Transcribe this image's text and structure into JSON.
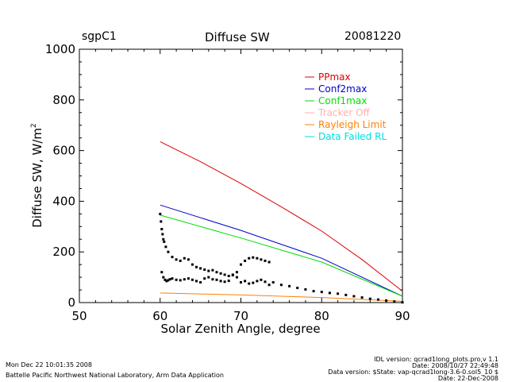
{
  "header": {
    "site": "sgpC1",
    "title": "Diffuse SW",
    "date": "20081220"
  },
  "footer": {
    "timestamp": "Mon Dec 22 10:01:35 2008",
    "org": "Battelle Pacific Northwest National Laboratory, Arm Data Application",
    "idl_version": "IDL version: qcrad1long_plots.pro,v 1.1",
    "idl_date": "Date: 2008/10/27 22:49:48",
    "data_version": "Data version: $State: vap-qcrad1long-3.6-0.sol5_10 $",
    "data_date": "Date: 22-Dec-2008"
  },
  "chart_data": {
    "type": "scatter",
    "title": "Diffuse SW",
    "xlabel": "Solar Zenith Angle, degree",
    "ylabel": "Diffuse SW, W/m",
    "ylabel_sup": "2",
    "xlim": [
      50,
      90
    ],
    "ylim": [
      0,
      1000
    ],
    "x_ticks": [
      50,
      60,
      70,
      80,
      90
    ],
    "y_ticks": [
      0,
      200,
      400,
      600,
      800,
      1000
    ],
    "legend_position": "top-right",
    "series": [
      {
        "name": "PPmax",
        "color": "#dd0000",
        "kind": "line",
        "x": [
          60,
          65,
          70,
          75,
          80,
          85,
          90
        ],
        "y": [
          635,
          556,
          470,
          378,
          282,
          170,
          45
        ]
      },
      {
        "name": "Conf2max",
        "color": "#0000cc",
        "kind": "line",
        "x": [
          60,
          70,
          80,
          90
        ],
        "y": [
          385,
          285,
          175,
          25
        ]
      },
      {
        "name": "Conf1max",
        "color": "#00dd00",
        "kind": "line",
        "x": [
          60,
          70,
          80,
          90
        ],
        "y": [
          345,
          255,
          160,
          25
        ]
      },
      {
        "name": "Tracker Off",
        "color": "#ffb0b0",
        "kind": "none",
        "x": [],
        "y": []
      },
      {
        "name": "Rayleigh Limit",
        "color": "#ff8000",
        "kind": "line",
        "x": [
          60,
          70,
          80,
          90
        ],
        "y": [
          38,
          30,
          20,
          5
        ]
      },
      {
        "name": "Data Failed RL",
        "color": "#00dddd",
        "kind": "none",
        "x": [],
        "y": []
      },
      {
        "name": "",
        "color": "#000000",
        "kind": "points",
        "x": [
          60.0,
          60.1,
          60.2,
          60.3,
          60.4,
          60.5,
          60.7,
          61.0,
          61.5,
          62.0,
          62.5,
          63.0,
          63.5,
          64.0,
          64.5,
          65.0,
          65.5,
          66.0,
          66.5,
          67.0,
          67.5,
          68.0,
          68.5,
          69.0,
          69.5,
          70.0,
          70.5,
          71.0,
          71.5,
          72.0,
          72.5,
          73.0,
          73.5,
          74.0,
          75.0,
          76.0,
          77.0,
          78.0,
          79.0,
          80.0,
          81.0,
          82.0,
          83.0,
          84.0,
          85.0,
          86.0,
          87.0,
          88.0,
          89.0,
          90.0,
          60.2,
          60.4,
          60.6,
          60.8,
          61.0,
          61.2,
          61.5,
          62.0,
          62.5,
          63.0,
          63.5,
          64.0,
          64.5,
          65.0,
          65.5,
          66.0,
          66.5,
          67.0,
          67.5,
          68.0,
          68.5,
          69.0,
          69.5,
          70.0,
          70.5,
          71.0,
          71.5,
          72.0,
          72.5,
          73.0,
          73.5
        ],
        "y": [
          350,
          320,
          290,
          270,
          250,
          240,
          220,
          200,
          180,
          170,
          165,
          175,
          170,
          150,
          140,
          135,
          130,
          125,
          128,
          120,
          115,
          110,
          105,
          108,
          120,
          150,
          165,
          175,
          178,
          175,
          170,
          165,
          160,
          80,
          70,
          65,
          58,
          52,
          45,
          42,
          38,
          35,
          30,
          25,
          20,
          15,
          12,
          8,
          4,
          1,
          120,
          100,
          90,
          85,
          88,
          92,
          95,
          90,
          88,
          92,
          95,
          90,
          85,
          80,
          95,
          100,
          92,
          90,
          85,
          82,
          86,
          110,
          100,
          80,
          85,
          75,
          78,
          85,
          90,
          82,
          70
        ]
      }
    ]
  }
}
